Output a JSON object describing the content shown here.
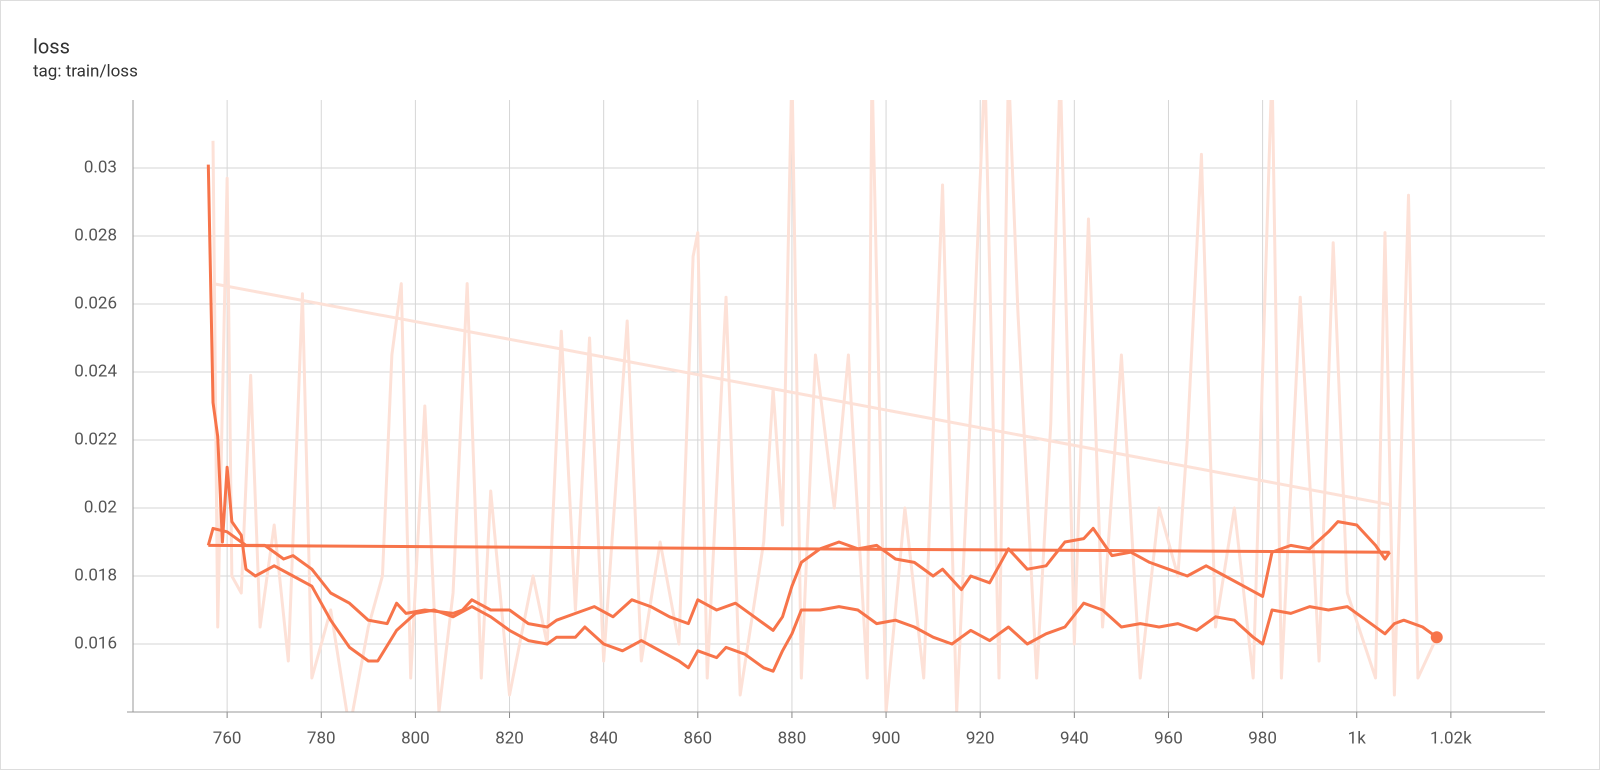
{
  "chart_data": {
    "type": "line",
    "title": "loss",
    "subtitle": "tag: train/loss",
    "xlim": [
      740,
      1040
    ],
    "ylim": [
      0.014,
      0.032
    ],
    "xticks": [
      760,
      780,
      800,
      820,
      840,
      860,
      880,
      900,
      920,
      940,
      960,
      980,
      {
        "value": 1000,
        "label": "1k"
      },
      {
        "value": 1020,
        "label": "1.02k"
      }
    ],
    "yticks": [
      0.016,
      0.018,
      0.02,
      0.022,
      0.024,
      0.026,
      0.028,
      0.03
    ],
    "grid": true,
    "series": [
      {
        "color": "#fde1d7",
        "x": [
          757,
          758,
          760,
          761,
          763,
          765,
          767,
          770,
          773,
          776,
          778,
          782,
          786,
          790,
          793,
          795,
          797,
          799,
          802,
          805,
          808,
          811,
          814,
          816,
          820,
          825,
          828,
          831,
          834,
          837,
          840,
          845,
          848,
          852,
          856,
          859,
          860,
          862,
          866,
          869,
          874,
          876,
          878,
          880,
          882,
          885,
          889,
          892,
          896,
          897,
          900,
          904,
          908,
          912,
          915,
          918,
          921,
          924,
          926,
          928,
          932,
          935,
          937,
          940,
          943,
          946,
          950,
          954,
          958,
          962,
          964,
          967,
          970,
          974,
          978,
          982,
          984,
          988,
          992,
          995,
          998,
          1004,
          1006,
          1008,
          1011,
          1013,
          1017
        ],
        "values": [
          0.0308,
          0.0165,
          0.0297,
          0.018,
          0.0175,
          0.0239,
          0.0165,
          0.0195,
          0.0155,
          0.0263,
          0.015,
          0.017,
          0.0135,
          0.0165,
          0.018,
          0.0245,
          0.0266,
          0.015,
          0.023,
          0.014,
          0.0175,
          0.0266,
          0.015,
          0.0205,
          0.0145,
          0.018,
          0.016,
          0.0252,
          0.017,
          0.025,
          0.0155,
          0.0255,
          0.0155,
          0.019,
          0.016,
          0.0274,
          0.0281,
          0.015,
          0.0262,
          0.0145,
          0.019,
          0.0235,
          0.0195,
          0.033,
          0.015,
          0.0245,
          0.02,
          0.0245,
          0.015,
          0.033,
          0.014,
          0.02,
          0.015,
          0.0295,
          0.014,
          0.023,
          0.033,
          0.015,
          0.033,
          0.0258,
          0.015,
          0.0225,
          0.033,
          0.016,
          0.0285,
          0.0165,
          0.0245,
          0.015,
          0.02,
          0.018,
          0.022,
          0.0304,
          0.0165,
          0.02,
          0.015,
          0.033,
          0.015,
          0.0262,
          0.0155,
          0.0278,
          0.0175,
          0.015,
          0.0281,
          0.0145,
          0.0292,
          0.015,
          0.0162
        ]
      },
      {
        "color": "#fde1d7",
        "x": [
          757,
          1007
        ],
        "values": [
          0.0266,
          0.0201
        ]
      },
      {
        "color": "#f7744a",
        "x": [
          756,
          1007
        ],
        "values": [
          0.0189,
          0.0187
        ]
      },
      {
        "color": "#f7744a",
        "x": [
          756,
          757,
          760,
          764,
          768,
          772,
          774,
          778,
          782,
          786,
          790,
          794,
          796,
          798,
          802,
          808,
          810,
          812,
          816,
          820,
          824,
          828,
          830,
          834,
          838,
          842,
          846,
          850,
          854,
          858,
          860,
          864,
          868,
          872,
          876,
          878,
          880,
          882,
          886,
          890,
          894,
          898,
          902,
          906,
          910,
          912,
          916,
          918,
          922,
          926,
          930,
          934,
          938,
          942,
          944,
          948,
          952,
          956,
          960,
          964,
          968,
          972,
          976,
          980,
          982,
          986,
          990,
          994,
          996,
          1000,
          1004,
          1006,
          1007
        ],
        "values": [
          0.0189,
          0.0194,
          0.0193,
          0.0189,
          0.0189,
          0.0185,
          0.0186,
          0.0182,
          0.0175,
          0.0172,
          0.0167,
          0.0166,
          0.0172,
          0.0169,
          0.017,
          0.0169,
          0.017,
          0.0173,
          0.017,
          0.017,
          0.0166,
          0.0165,
          0.0167,
          0.0169,
          0.0171,
          0.0168,
          0.0173,
          0.0171,
          0.0168,
          0.0166,
          0.0173,
          0.017,
          0.0172,
          0.0168,
          0.0164,
          0.0168,
          0.0177,
          0.0184,
          0.0188,
          0.019,
          0.0188,
          0.0189,
          0.0185,
          0.0184,
          0.018,
          0.0182,
          0.0176,
          0.018,
          0.0178,
          0.0188,
          0.0182,
          0.0183,
          0.019,
          0.0191,
          0.0194,
          0.0186,
          0.0187,
          0.0184,
          0.0182,
          0.018,
          0.0183,
          0.018,
          0.0177,
          0.0174,
          0.0187,
          0.0189,
          0.0188,
          0.0193,
          0.0196,
          0.0195,
          0.0189,
          0.0185,
          0.0187
        ]
      },
      {
        "color": "#f7744a",
        "end_marker": true,
        "x": [
          756,
          757,
          758,
          759,
          760,
          761,
          763,
          764,
          766,
          770,
          774,
          778,
          782,
          786,
          790,
          792,
          796,
          800,
          804,
          808,
          812,
          816,
          820,
          824,
          828,
          830,
          834,
          836,
          840,
          844,
          848,
          852,
          856,
          858,
          860,
          864,
          866,
          870,
          874,
          876,
          878,
          880,
          882,
          886,
          890,
          894,
          898,
          902,
          906,
          910,
          914,
          918,
          922,
          926,
          930,
          934,
          938,
          942,
          946,
          950,
          954,
          958,
          962,
          966,
          970,
          974,
          978,
          980,
          982,
          986,
          990,
          994,
          998,
          1002,
          1006,
          1008,
          1010,
          1014,
          1017
        ],
        "values": [
          0.0301,
          0.0231,
          0.0221,
          0.019,
          0.0212,
          0.0196,
          0.0192,
          0.0182,
          0.018,
          0.0183,
          0.018,
          0.0177,
          0.0167,
          0.0159,
          0.0155,
          0.0155,
          0.0164,
          0.0169,
          0.017,
          0.0168,
          0.0171,
          0.0168,
          0.0164,
          0.0161,
          0.016,
          0.0162,
          0.0162,
          0.0165,
          0.016,
          0.0158,
          0.0161,
          0.0158,
          0.0155,
          0.0153,
          0.0158,
          0.0156,
          0.0159,
          0.0157,
          0.0153,
          0.0152,
          0.0158,
          0.0163,
          0.017,
          0.017,
          0.0171,
          0.017,
          0.0166,
          0.0167,
          0.0165,
          0.0162,
          0.016,
          0.0164,
          0.0161,
          0.0165,
          0.016,
          0.0163,
          0.0165,
          0.0172,
          0.017,
          0.0165,
          0.0166,
          0.0165,
          0.0166,
          0.0164,
          0.0168,
          0.0167,
          0.0162,
          0.016,
          0.017,
          0.0169,
          0.0171,
          0.017,
          0.0171,
          0.0167,
          0.0163,
          0.0166,
          0.0167,
          0.0165,
          0.0162
        ]
      }
    ]
  }
}
